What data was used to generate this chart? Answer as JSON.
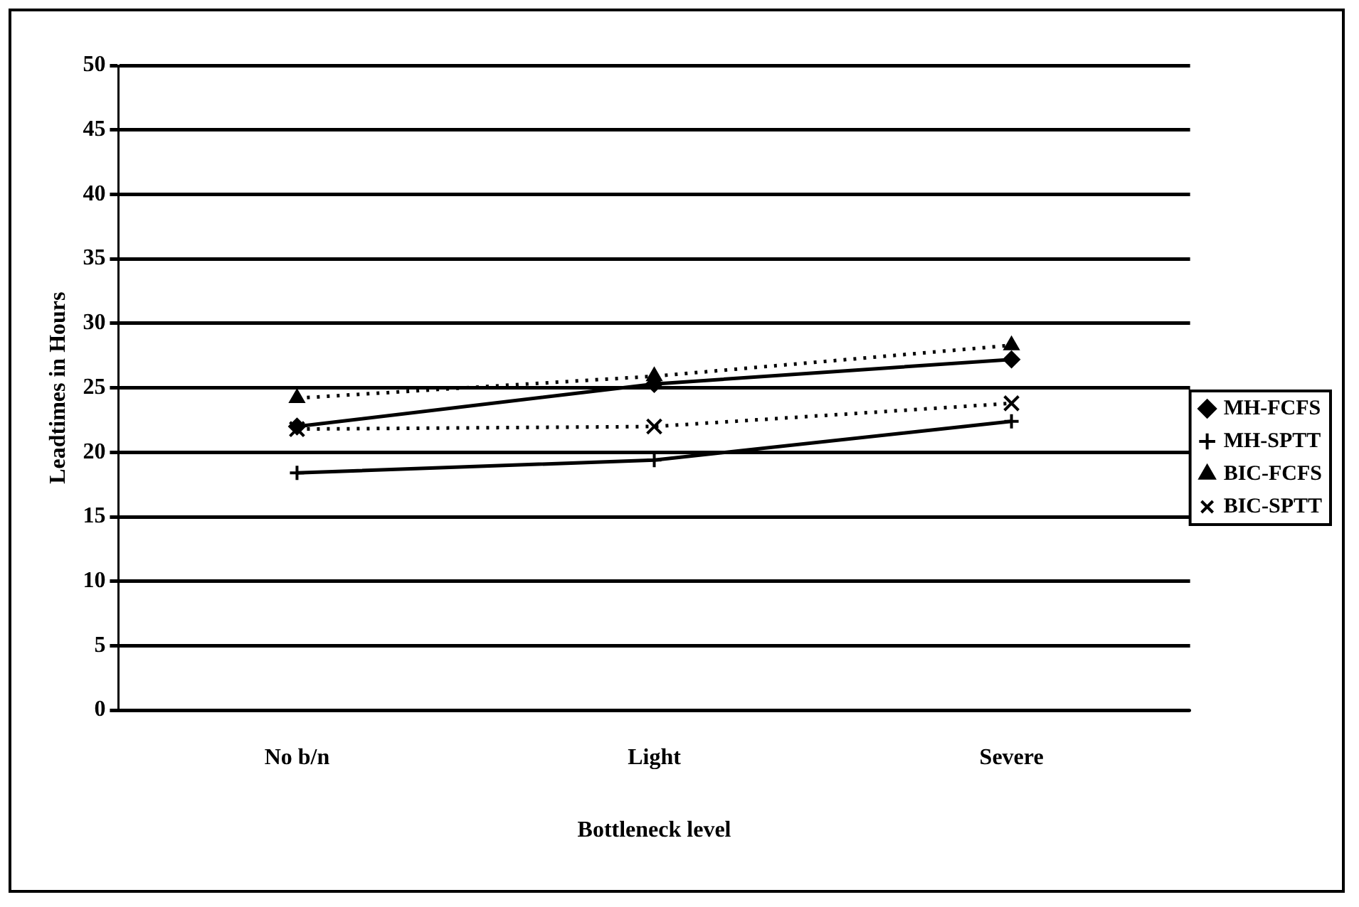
{
  "chart_data": {
    "type": "line",
    "xlabel": "Bottleneck level",
    "ylabel": "Leadtimes in Hours",
    "categories": [
      "No b/n",
      "Light",
      "Severe"
    ],
    "series": [
      {
        "name": "MH-FCFS",
        "color": "#000000",
        "values": [
          22.0,
          25.3,
          27.2
        ],
        "marker": "diamond",
        "line_style": "solid"
      },
      {
        "name": "MH-SPTT",
        "color": "#000000",
        "values": [
          18.4,
          19.4,
          22.4
        ],
        "marker": "cross",
        "line_style": "solid"
      },
      {
        "name": "BIC-FCFS",
        "color": "#000000",
        "values": [
          24.2,
          25.9,
          28.3
        ],
        "marker": "triangle",
        "line_style": "dotted"
      },
      {
        "name": "BIC-SPTT",
        "color": "#000000",
        "values": [
          21.8,
          22.0,
          23.8
        ],
        "marker": "x",
        "line_style": "dotted"
      }
    ],
    "ylim": [
      0,
      50
    ],
    "yticks": [
      0,
      5,
      10,
      15,
      20,
      25,
      30,
      35,
      40,
      45,
      50
    ],
    "grid": "y",
    "legend": "right"
  }
}
